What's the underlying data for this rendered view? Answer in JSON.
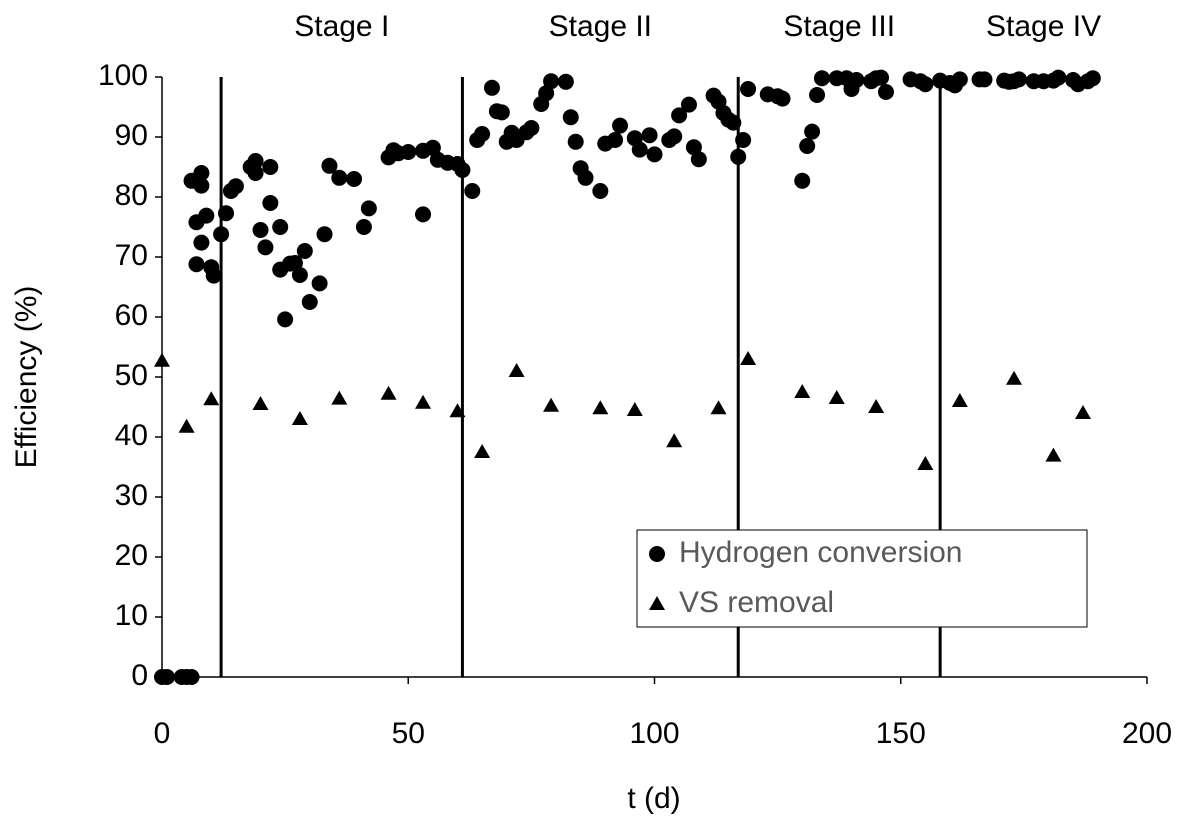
{
  "chart_data": {
    "type": "scatter",
    "x_label": "t (d)",
    "y_label": "Efficiency (%)",
    "xlim": [
      0,
      200
    ],
    "xticks": [
      0,
      50,
      100,
      150,
      200
    ],
    "ylim": [
      0,
      100
    ],
    "yticks": [
      0,
      10,
      20,
      30,
      40,
      50,
      60,
      70,
      80,
      90,
      100
    ],
    "grid": false,
    "legend": "lower right",
    "stage_boundaries": [
      12,
      61,
      117,
      158
    ],
    "stage_labels": [
      "Stage I",
      "Stage II",
      "Stage III",
      "Stage IV"
    ],
    "series": [
      {
        "name": "Hydrogen conversion",
        "color": "#000000",
        "marker": "circle",
        "x": [
          0,
          1,
          4,
          5,
          6,
          6,
          7,
          7,
          8,
          8,
          8,
          9,
          10,
          10.5,
          12,
          13,
          14,
          15,
          18,
          19,
          19,
          20,
          21,
          22,
          22,
          24,
          24,
          25,
          26,
          27,
          28,
          29,
          30,
          32,
          33,
          34,
          36,
          39,
          41,
          42,
          46,
          47,
          48,
          50,
          53,
          53,
          55,
          56,
          58,
          60,
          61,
          63,
          64,
          65,
          67,
          68,
          69,
          70,
          71,
          72,
          74,
          75,
          77,
          78,
          79,
          82,
          83,
          84,
          85,
          86,
          89,
          90,
          92,
          93,
          96,
          97,
          99,
          100,
          103,
          104,
          105,
          107,
          108,
          109,
          112,
          113,
          114,
          115,
          116,
          117,
          118,
          119,
          123,
          125,
          126,
          130,
          131,
          132,
          133,
          134,
          137,
          139,
          140,
          141,
          144,
          145,
          146,
          147,
          152,
          154,
          155,
          158,
          160,
          161,
          162,
          166,
          167,
          171,
          172,
          173,
          174,
          177,
          179,
          181,
          182,
          185,
          186,
          188,
          189
        ],
        "values": [
          0,
          0,
          0,
          0,
          0,
          82.7,
          68.8,
          75.8,
          72.4,
          84,
          81.9,
          76.9,
          68.3,
          66.9,
          73.8,
          77.3,
          81,
          81.8,
          85,
          86,
          84,
          74.5,
          71.6,
          85,
          79,
          75,
          67.9,
          59.6,
          68.9,
          69,
          67,
          71,
          62.5,
          65.6,
          73.8,
          85.2,
          83.2,
          83,
          75,
          78.1,
          86.6,
          87.8,
          87.3,
          87.5,
          77.1,
          87.7,
          88.2,
          86.2,
          85.7,
          85.5,
          84.5,
          81,
          89.5,
          90.5,
          98.2,
          94.3,
          94.1,
          89.2,
          90.7,
          89.5,
          90.8,
          91.5,
          95.5,
          97.3,
          99.3,
          99.2,
          93.3,
          89.2,
          84.8,
          83.2,
          81,
          88.9,
          89.5,
          91.9,
          89.8,
          87.9,
          90.3,
          87.1,
          89.5,
          90.1,
          93.6,
          95.4,
          88.3,
          86.3,
          96.9,
          95.9,
          94,
          92.9,
          92.4,
          86.7,
          89.5,
          98,
          97.1,
          96.8,
          96.4,
          82.7,
          88.5,
          90.9,
          97,
          99.8,
          99.8,
          99.8,
          98,
          99.5,
          99.3,
          99.8,
          99.9,
          97.5,
          99.6,
          99.3,
          98.8,
          99.4,
          99,
          98.6,
          99.6,
          99.6,
          99.6,
          99.4,
          99.2,
          99.3,
          99.6,
          99.3,
          99.3,
          99.4,
          99.9,
          99.5,
          98.8,
          99.3,
          99.8
        ]
      },
      {
        "name": "VS removal",
        "color": "#000000",
        "marker": "triangle",
        "x": [
          0,
          5,
          10,
          20,
          28,
          36,
          46,
          53,
          60,
          65,
          72,
          79,
          89,
          96,
          104,
          113,
          119,
          130,
          137,
          145,
          155,
          162,
          173,
          181,
          187
        ],
        "values": [
          52.7,
          41.7,
          46.3,
          45.5,
          43,
          46.4,
          47.2,
          45.7,
          44.3,
          37.5,
          51,
          45.2,
          44.8,
          44.5,
          39.3,
          44.8,
          53,
          47.5,
          46.5,
          45,
          35.5,
          46,
          49.7,
          36.9,
          44
        ]
      }
    ]
  }
}
